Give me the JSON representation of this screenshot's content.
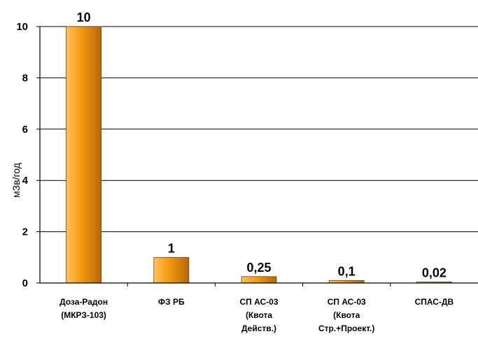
{
  "chart_data": {
    "type": "bar",
    "categories": [
      [
        "Доза-Радон",
        "(МКРЗ-103)"
      ],
      [
        "ФЗ РБ"
      ],
      [
        "СП АС-03",
        "(Квота",
        "Действ.)"
      ],
      [
        "СП АС-03",
        "(Квота",
        "Стр.+Проект.)"
      ],
      [
        "СПАС-ДВ"
      ]
    ],
    "values": [
      10,
      1,
      0.25,
      0.1,
      0.02
    ],
    "data_labels": [
      "10",
      "1",
      "0,25",
      "0,1",
      "0,02"
    ],
    "yticks": [
      0,
      2,
      4,
      6,
      8,
      10
    ],
    "ylim": [
      0,
      10
    ],
    "ylabel": "мЗв/год",
    "xlabel": "",
    "title": "",
    "grid": true,
    "legend": "none",
    "colors": {
      "bar_light": "#ffc15a",
      "bar_mid": "#f2980f",
      "bar_dark": "#b5660a",
      "bar_edge": "#7a4205",
      "grid": "#000000"
    }
  }
}
